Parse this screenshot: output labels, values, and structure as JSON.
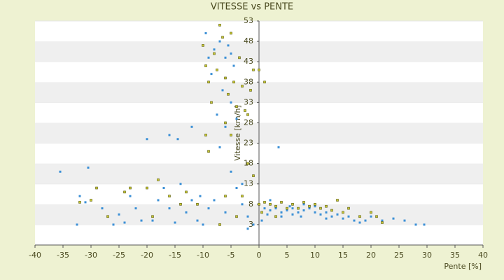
{
  "chart_data": {
    "type": "scatter",
    "title": "VITESSE vs PENTE",
    "x_label": "Pente [%]",
    "y_label": "Vitesse [km/h]",
    "xlim": [
      -40,
      40
    ],
    "ylim": [
      -2,
      53
    ],
    "xticks": [
      -40,
      -35,
      -30,
      -25,
      -20,
      -15,
      -10,
      -5,
      0,
      5,
      10,
      15,
      20,
      25,
      30,
      35,
      40
    ],
    "yticks": [
      3,
      8,
      13,
      18,
      23,
      28,
      33,
      38,
      43,
      48,
      53
    ],
    "banded_grid": true,
    "series": [
      {
        "color": "#3a8fd6",
        "x": [
          -35.5,
          -30.5,
          -32,
          -31,
          -28,
          -32.5,
          -26,
          -24,
          -23,
          -22,
          -21,
          -20,
          -19,
          -18,
          -17,
          -16,
          -15,
          -14.5,
          -14,
          -13,
          -12,
          -11,
          -10.5,
          -10,
          -9.5,
          -9,
          -8.5,
          -8,
          -7.5,
          -7,
          -6.5,
          -6,
          -5.5,
          -5,
          -5,
          -4.5,
          -4,
          -6,
          -7,
          -5,
          -4,
          -3,
          -2,
          -1,
          -6,
          -8,
          -3,
          -12,
          -16,
          1,
          2,
          3,
          4,
          5,
          6,
          7,
          8,
          9,
          10,
          11,
          12,
          13,
          14,
          15,
          16,
          17,
          18,
          19,
          20,
          22,
          24,
          26,
          28,
          29.5,
          3.5,
          2,
          4,
          6,
          8,
          -2,
          -9,
          -25,
          0.5,
          1.5,
          5.5,
          7.5,
          10,
          12
        ],
        "values": [
          16,
          17,
          10,
          8.5,
          7,
          3,
          3,
          3.5,
          10,
          7,
          4,
          24,
          4,
          9,
          12,
          7,
          3.5,
          24,
          13,
          6,
          9,
          4,
          10,
          3,
          50,
          44,
          40,
          46,
          30,
          48,
          36,
          44,
          47,
          45,
          33,
          42,
          29,
          27,
          22,
          16,
          12,
          8,
          5,
          3,
          6,
          9,
          13,
          27,
          25,
          7,
          6.5,
          7,
          6,
          6.5,
          7,
          6,
          6.5,
          7,
          6,
          5.5,
          6,
          5,
          5.5,
          4.5,
          5,
          4,
          3.5,
          4,
          5,
          4,
          4.5,
          4,
          3,
          3,
          22,
          9,
          5,
          5.5,
          8,
          2,
          7,
          5.5,
          4,
          5.5,
          7.5,
          5,
          7.5,
          4.5
        ]
      },
      {
        "color": "#c8c832",
        "x": [
          -32,
          -30,
          -29,
          -27,
          -24,
          -20,
          -18,
          -16,
          -13,
          -11,
          -10,
          -9.5,
          -9,
          -8.5,
          -8,
          -7.5,
          -7,
          -6.5,
          -6,
          -5.5,
          -5,
          -4.5,
          -4,
          -3.5,
          -3,
          -2.5,
          -2,
          -1.5,
          -1,
          0,
          1,
          -9.5,
          -9,
          -6,
          -5,
          -2,
          -1,
          -3,
          0,
          1,
          2,
          3,
          4,
          5,
          6,
          7,
          8,
          9,
          10,
          11,
          12,
          13,
          14,
          15,
          16,
          18,
          20,
          21,
          22,
          -23,
          -19,
          -14,
          -6,
          -4,
          -7,
          0.5,
          3
        ],
        "values": [
          8.5,
          9,
          12,
          5,
          11,
          12,
          14,
          10,
          11,
          8,
          47,
          42,
          38,
          33,
          45,
          41,
          52,
          49,
          39,
          35,
          50,
          38,
          32,
          44,
          37,
          31,
          30,
          36,
          41,
          41,
          38,
          25,
          21,
          28,
          25,
          18,
          15,
          10,
          8,
          8.5,
          8,
          7.5,
          8.5,
          7,
          8,
          7,
          8.5,
          7.5,
          8,
          7,
          7.5,
          6.5,
          9,
          6,
          7,
          5,
          6,
          5,
          3.5,
          12,
          5,
          8,
          10,
          5,
          3,
          6,
          5
        ]
      }
    ]
  }
}
